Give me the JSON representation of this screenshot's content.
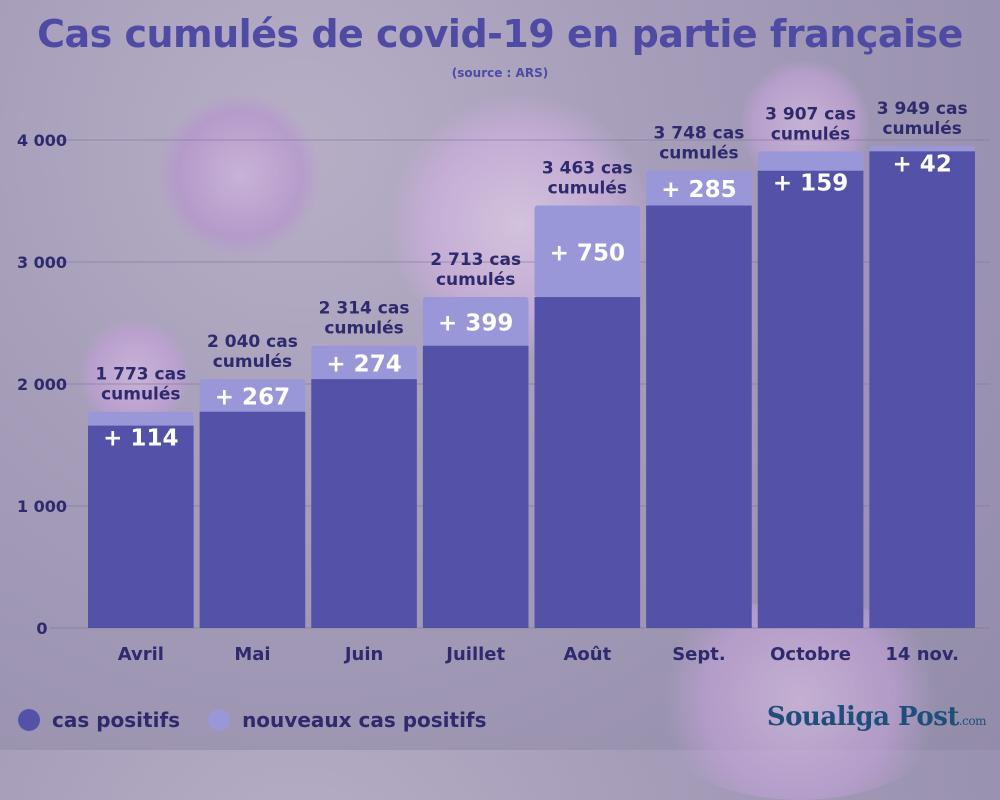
{
  "title": "Cas cumulés de covid-19 en partie française",
  "subtitle": "(source : ARS)",
  "colors": {
    "base": "#5352a8",
    "increase": "#9a97d9",
    "title": "#4f4aa3"
  },
  "legend": {
    "base_label": "cas positifs",
    "increase_label": "nouveaux cas positifs"
  },
  "brand": {
    "name": "Soualiga Post",
    "suffix": ".com"
  },
  "chart_data": {
    "type": "bar",
    "stacked": true,
    "categories": [
      "Avril",
      "Mai",
      "Juin",
      "Juillet",
      "Août",
      "Sept.",
      "Octobre",
      "14 nov."
    ],
    "series": [
      {
        "name": "cas positifs",
        "values": [
          1659,
          1773,
          2040,
          2314,
          2713,
          3463,
          3748,
          3907
        ]
      },
      {
        "name": "nouveaux cas positifs",
        "values": [
          114,
          267,
          274,
          399,
          750,
          285,
          159,
          42
        ]
      }
    ],
    "totals": [
      1773,
      2040,
      2314,
      2713,
      3463,
      3748,
      3907,
      3949
    ],
    "total_label_prefixes": [
      "1 773 cas",
      "2 040 cas",
      "2 314 cas",
      "2 713 cas",
      "3 463 cas",
      "3 748 cas",
      "3 907 cas",
      "3 949 cas"
    ],
    "total_label_suffix": "cumulés",
    "increase_labels": [
      "+ 114",
      "+ 267",
      "+ 274",
      "+ 399",
      "+ 750",
      "+ 285",
      "+ 159",
      "+ 42"
    ],
    "yticks": [
      0,
      1000,
      2000,
      3000,
      4000
    ],
    "ytick_labels": [
      "0",
      "1 000",
      "2 000",
      "3 000",
      "4 000"
    ],
    "ylim": [
      0,
      4000
    ],
    "grid": true,
    "legend_position": "bottom-left"
  }
}
